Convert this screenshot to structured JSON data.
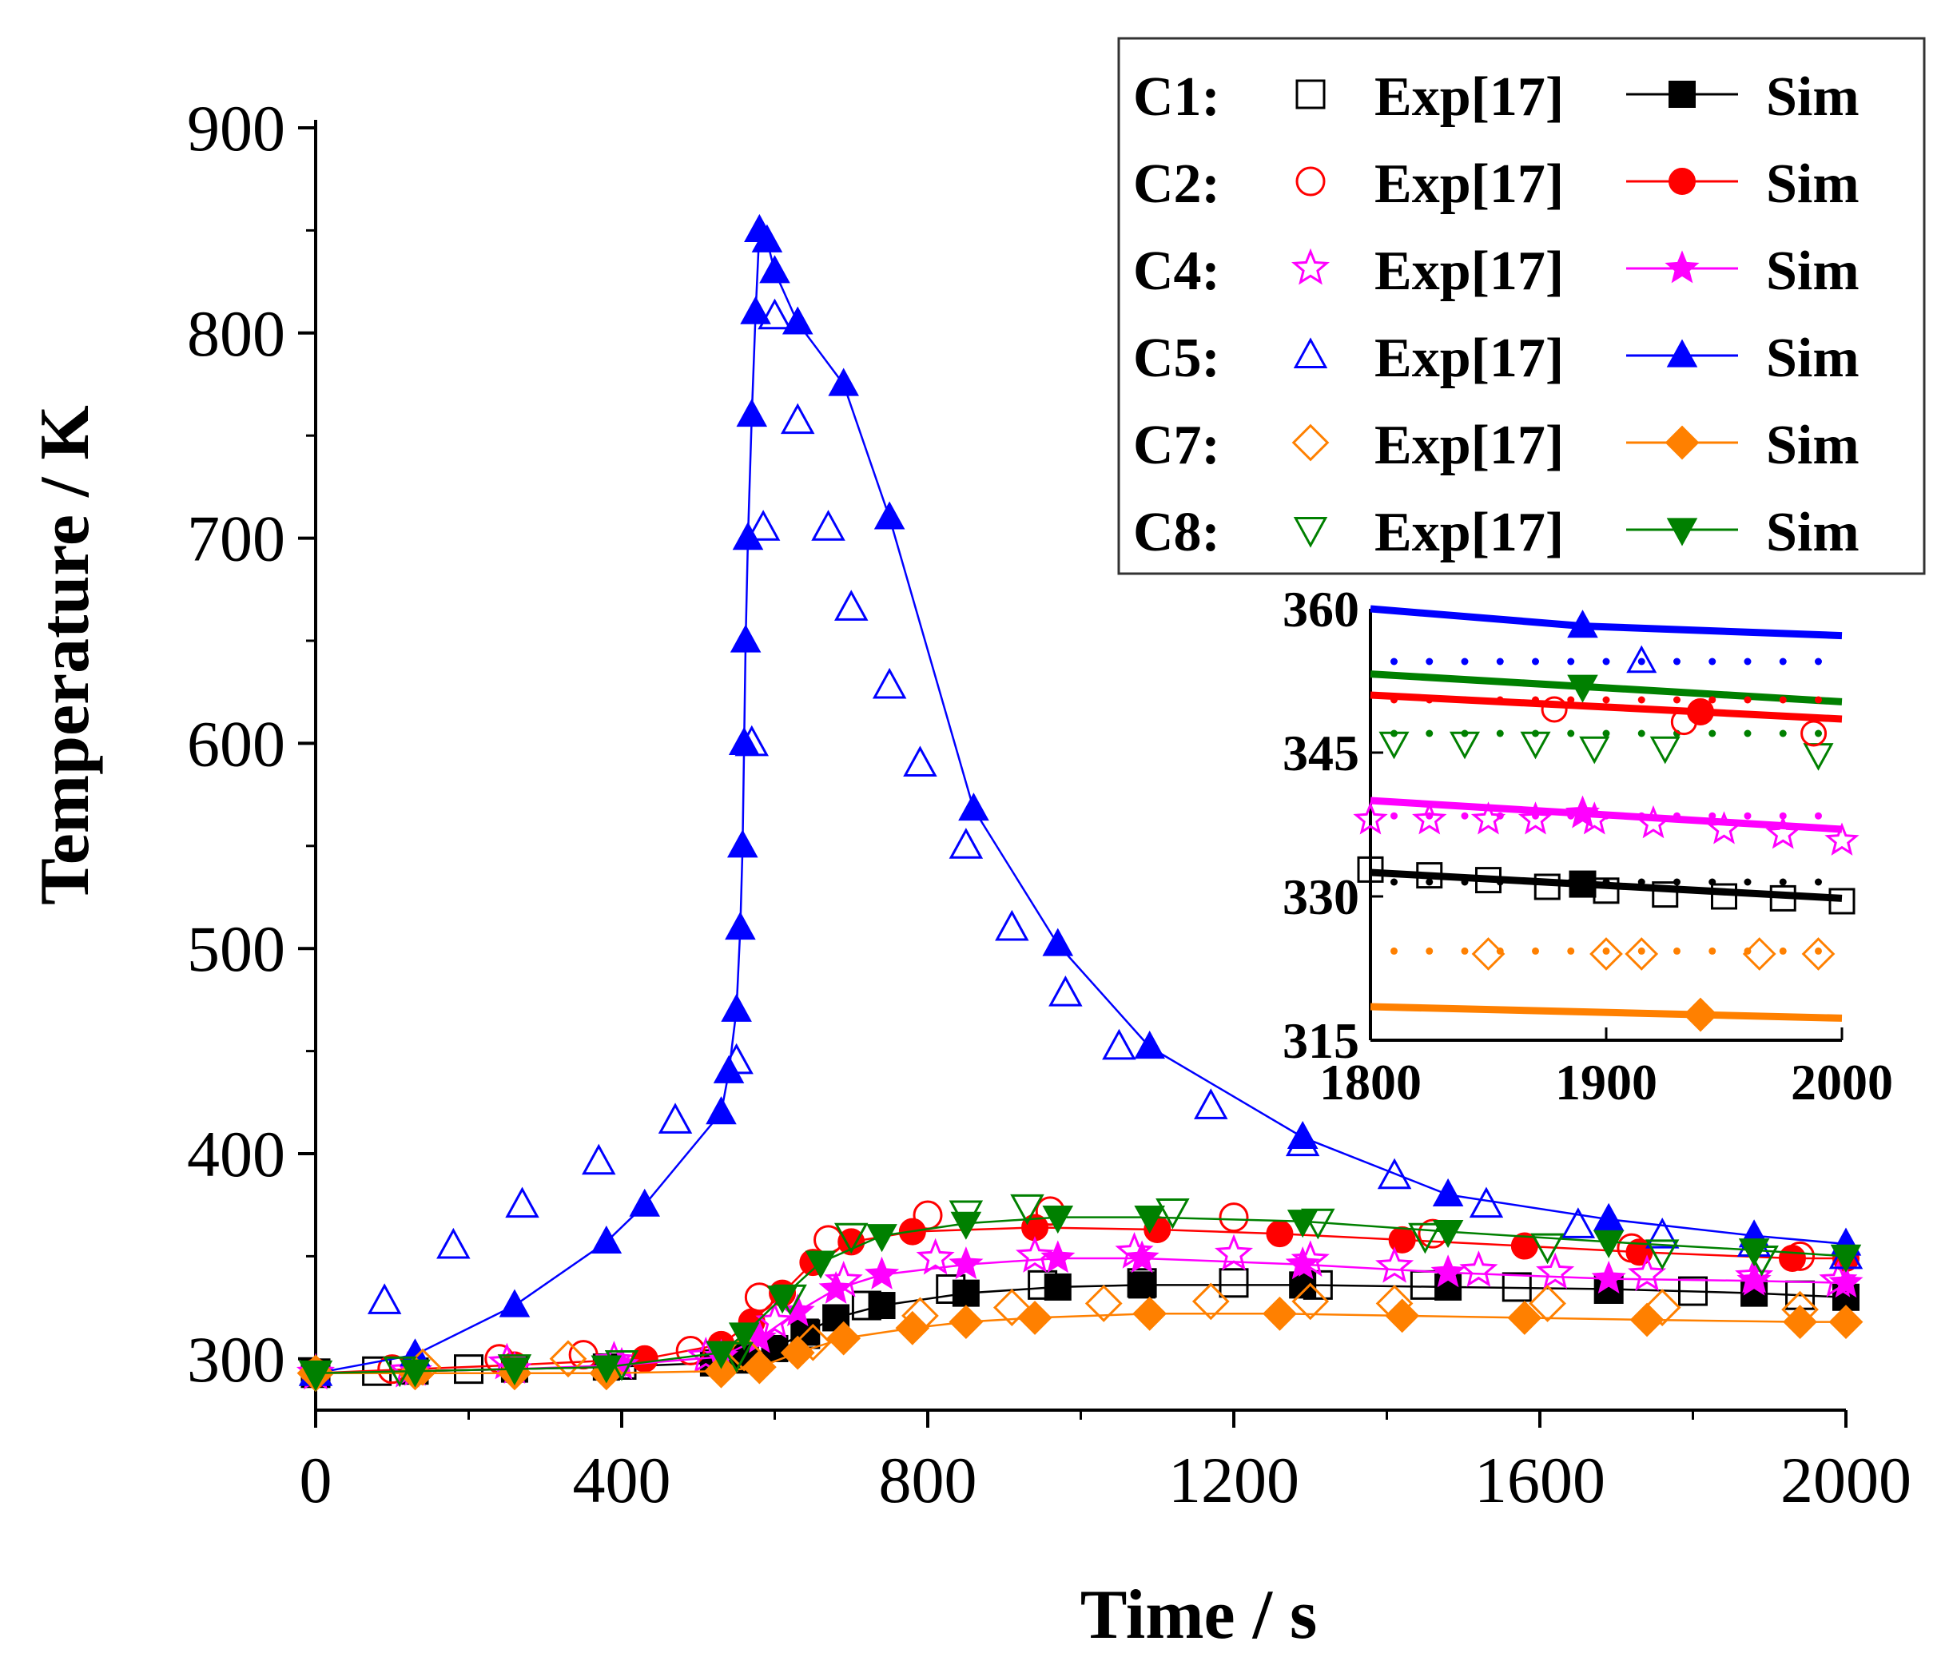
{
  "chart_data": {
    "type": "line",
    "xlabel": "Time / s",
    "ylabel": "Temperature / K",
    "xlim": [
      0,
      2000
    ],
    "ylim": [
      275,
      900
    ],
    "xticks": [
      0,
      400,
      800,
      1200,
      1600,
      2000
    ],
    "yticks": [
      300,
      400,
      500,
      600,
      700,
      800,
      900
    ],
    "legend_position": "top-right",
    "legend": [
      {
        "id": "C1",
        "label": "C1:",
        "exp": "Exp[17]",
        "sim": "Sim",
        "color": "#000000",
        "marker": "square"
      },
      {
        "id": "C2",
        "label": "C2:",
        "exp": "Exp[17]",
        "sim": "Sim",
        "color": "#ff0000",
        "marker": "circle"
      },
      {
        "id": "C4",
        "label": "C4:",
        "exp": "Exp[17]",
        "sim": "Sim",
        "color": "#ff00ff",
        "marker": "star"
      },
      {
        "id": "C5",
        "label": "C5:",
        "exp": "Exp[17]",
        "sim": "Sim",
        "color": "#0000ff",
        "marker": "triangle"
      },
      {
        "id": "C7",
        "label": "C7:",
        "exp": "Exp[17]",
        "sim": "Sim",
        "color": "#ff8000",
        "marker": "diamond"
      },
      {
        "id": "C8",
        "label": "C8:",
        "exp": "Exp[17]",
        "sim": "Sim",
        "color": "#008000",
        "marker": "triangle-down"
      }
    ],
    "series": [
      {
        "name": "C1 Sim",
        "color": "#000000",
        "marker": "square",
        "filled": true,
        "x": [
          0,
          130,
          260,
          380,
          520,
          560,
          600,
          640,
          680,
          740,
          850,
          970,
          1080,
          1290,
          1480,
          1690,
          1880,
          2000
        ],
        "y": [
          293,
          294,
          295,
          296,
          298,
          300,
          305,
          313,
          320,
          326,
          332,
          335,
          336,
          336,
          335,
          334,
          332,
          330
        ]
      },
      {
        "name": "C1 Exp",
        "color": "#000000",
        "marker": "square",
        "filled": false,
        "x": [
          0,
          80,
          200,
          400,
          560,
          640,
          720,
          830,
          950,
          1080,
          1200,
          1310,
          1450,
          1570,
          1690,
          1800,
          1940
        ],
        "y": [
          293,
          294,
          295,
          297,
          300,
          312,
          326,
          334,
          336,
          337,
          337,
          336,
          336,
          335,
          334,
          333,
          331
        ]
      },
      {
        "name": "C2 Sim",
        "color": "#ff0000",
        "marker": "circle",
        "filled": true,
        "x": [
          0,
          130,
          260,
          430,
          530,
          570,
          610,
          650,
          700,
          780,
          940,
          1100,
          1260,
          1420,
          1580,
          1730,
          1930,
          2000
        ],
        "y": [
          293,
          295,
          297,
          300,
          307,
          318,
          332,
          347,
          357,
          362,
          364,
          363,
          361,
          358,
          355,
          352,
          349,
          349
        ]
      },
      {
        "name": "C2 Exp",
        "color": "#ff0000",
        "marker": "circle",
        "filled": false,
        "x": [
          0,
          100,
          240,
          350,
          490,
          580,
          670,
          800,
          960,
          1200,
          1460,
          1720,
          1940
        ],
        "y": [
          293,
          295,
          300,
          302,
          304,
          330,
          358,
          370,
          372,
          369,
          361,
          354,
          350
        ]
      },
      {
        "name": "C4 Sim",
        "color": "#ff00ff",
        "marker": "star",
        "filled": true,
        "x": [
          0,
          130,
          260,
          400,
          530,
          580,
          630,
          680,
          740,
          850,
          970,
          1080,
          1290,
          1480,
          1690,
          1880,
          2000
        ],
        "y": [
          293,
          294,
          295,
          297,
          301,
          310,
          323,
          334,
          341,
          346,
          349,
          349,
          346,
          342,
          339,
          338,
          337
        ]
      },
      {
        "name": "C4 Exp",
        "color": "#ff00ff",
        "marker": "star",
        "filled": false,
        "x": [
          0,
          120,
          250,
          390,
          510,
          600,
          690,
          810,
          940,
          1070,
          1200,
          1300,
          1410,
          1520,
          1620,
          1740,
          1880,
          1990
        ],
        "y": [
          293,
          294,
          298,
          299,
          301,
          318,
          338,
          349,
          350,
          352,
          351,
          348,
          345,
          343,
          342,
          341,
          340,
          338
        ]
      },
      {
        "name": "C5 Sim",
        "color": "#0000ff",
        "marker": "triangle",
        "filled": true,
        "x": [
          0,
          130,
          260,
          380,
          430,
          530,
          540,
          550,
          555,
          558,
          560,
          562,
          565,
          570,
          575,
          580,
          590,
          600,
          630,
          690,
          750,
          860,
          970,
          1090,
          1290,
          1480,
          1690,
          1880,
          2000
        ],
        "y": [
          293,
          302,
          326,
          357,
          375,
          420,
          440,
          470,
          510,
          550,
          600,
          650,
          700,
          760,
          810,
          850,
          845,
          830,
          805,
          775,
          710,
          568,
          502,
          452,
          408,
          380,
          368,
          360,
          356
        ]
      },
      {
        "name": "C5 Exp",
        "color": "#0000ff",
        "marker": "triangle",
        "filled": false,
        "x": [
          0,
          90,
          180,
          270,
          370,
          470,
          550,
          570,
          585,
          600,
          630,
          670,
          700,
          750,
          790,
          850,
          910,
          980,
          1050,
          1170,
          1290,
          1410,
          1530,
          1650,
          1760,
          1880,
          2000
        ],
        "y": [
          293,
          328,
          355,
          375,
          396,
          416,
          445,
          600,
          705,
          808,
          757,
          705,
          666,
          628,
          590,
          550,
          510,
          478,
          452,
          423,
          405,
          389,
          375,
          365,
          360,
          356,
          350
        ]
      },
      {
        "name": "C7 Sim",
        "color": "#ff8000",
        "marker": "diamond",
        "filled": true,
        "x": [
          0,
          130,
          260,
          380,
          530,
          580,
          630,
          690,
          780,
          850,
          940,
          1090,
          1260,
          1420,
          1580,
          1740,
          1940,
          2000
        ],
        "y": [
          293,
          293,
          293,
          293,
          294,
          296,
          303,
          310,
          315,
          318,
          320,
          322,
          322,
          321,
          320,
          319,
          318,
          318
        ]
      },
      {
        "name": "C7 Exp",
        "color": "#ff8000",
        "marker": "diamond",
        "filled": false,
        "x": [
          0,
          140,
          330,
          560,
          650,
          790,
          910,
          1030,
          1170,
          1300,
          1410,
          1610,
          1760,
          1940
        ],
        "y": [
          293,
          296,
          300,
          303,
          308,
          321,
          325,
          327,
          328,
          328,
          327,
          327,
          325,
          324
        ]
      },
      {
        "name": "C8 Sim",
        "color": "#008000",
        "marker": "triangle-down",
        "filled": true,
        "x": [
          0,
          130,
          260,
          380,
          530,
          560,
          610,
          660,
          740,
          850,
          970,
          1090,
          1290,
          1480,
          1690,
          1880,
          2000
        ],
        "y": [
          293,
          294,
          295,
          296,
          303,
          312,
          330,
          347,
          360,
          366,
          369,
          369,
          367,
          362,
          357,
          353,
          350
        ]
      },
      {
        "name": "C8 Exp",
        "color": "#008000",
        "marker": "triangle-down",
        "filled": false,
        "x": [
          0,
          110,
          260,
          400,
          550,
          620,
          700,
          850,
          930,
          1120,
          1310,
          1450,
          1610,
          1760,
          1890
        ],
        "y": [
          293,
          295,
          296,
          298,
          302,
          330,
          360,
          371,
          374,
          372,
          367,
          360,
          355,
          352,
          349
        ]
      }
    ],
    "inset": {
      "xlim": [
        1800,
        2000
      ],
      "ylim": [
        315,
        360
      ],
      "xticks": [
        1800,
        1900,
        2000
      ],
      "yticks": [
        315,
        330,
        345,
        360
      ],
      "series": [
        {
          "name": "C5",
          "color": "#0000ff",
          "marker": "triangle",
          "sim_x": [
            1800,
            1890,
            2000
          ],
          "sim_y": [
            360,
            358.2,
            357.2
          ],
          "dots_y": 354.5,
          "exp_x": [
            1915
          ],
          "exp_y": [
            354.5
          ]
        },
        {
          "name": "C8",
          "color": "#008000",
          "marker": "triangle-down",
          "sim_x": [
            1800,
            2000
          ],
          "sim_y": [
            353.2,
            350.3
          ],
          "dots_y": 347,
          "exp_x": [
            1810,
            1840,
            1870,
            1895,
            1925,
            1990
          ],
          "exp_y": [
            346,
            346,
            346,
            345.5,
            345.5,
            344.8
          ]
        },
        {
          "name": "C2",
          "color": "#ff0000",
          "marker": "circle",
          "sim_x": [
            1800,
            2000
          ],
          "sim_y": [
            351,
            348.5
          ],
          "dots_y": 350.5,
          "exp_x": [
            1878,
            1933,
            1988
          ],
          "exp_y": [
            349.5,
            348.2,
            347
          ]
        },
        {
          "name": "C4",
          "color": "#ff00ff",
          "marker": "star",
          "sim_x": [
            1800,
            2000
          ],
          "sim_y": [
            340,
            337
          ],
          "dots_y": 338.4,
          "exp_x": [
            1800,
            1825,
            1850,
            1870,
            1895,
            1920,
            1950,
            1975,
            2000
          ],
          "exp_y": [
            338,
            338,
            338,
            338,
            338,
            337.6,
            337,
            336.5,
            335.8
          ]
        },
        {
          "name": "C1",
          "color": "#000000",
          "marker": "square",
          "sim_x": [
            1800,
            2000
          ],
          "sim_y": [
            332.5,
            329.8
          ],
          "dots_y": 331.5,
          "exp_x": [
            1800,
            1825,
            1850,
            1875,
            1900,
            1925,
            1950,
            1975,
            2000
          ],
          "exp_y": [
            332.8,
            332.2,
            331.7,
            331,
            330.6,
            330.2,
            330,
            329.8,
            329.5
          ]
        },
        {
          "name": "C7",
          "color": "#ff8000",
          "marker": "diamond",
          "sim_x": [
            1800,
            2000
          ],
          "sim_y": [
            318.5,
            317.3
          ],
          "dots_y": 324.3,
          "exp_x": [
            1850,
            1900,
            1915,
            1965,
            1990
          ],
          "exp_y": [
            324,
            324,
            324,
            324,
            324
          ]
        }
      ]
    }
  }
}
